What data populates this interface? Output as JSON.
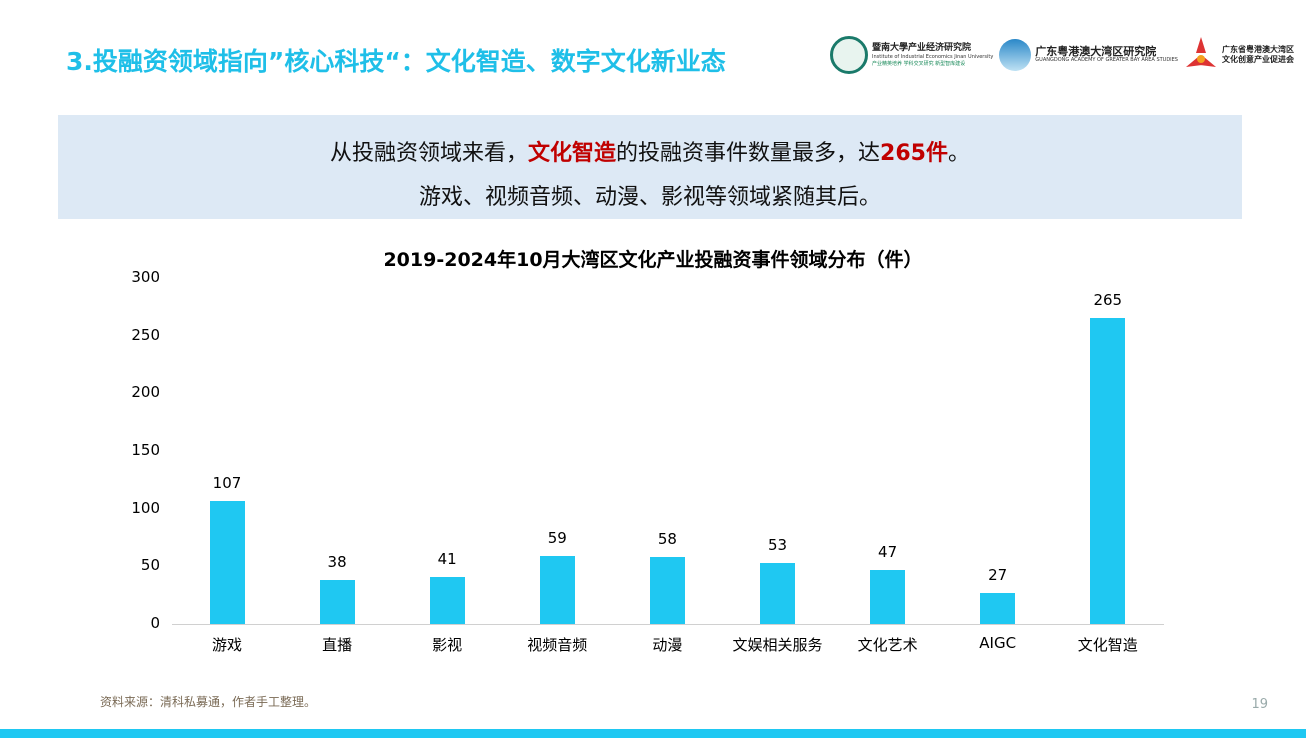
{
  "header": {
    "title": "3.投融资领域指向”核心科技“：文化智造、数字文化新业态"
  },
  "logos": {
    "jnu": {
      "name": "暨南大學产业经济研究院",
      "en": "Institute of Industrial Economics Jinan University",
      "slogan": "产业精英培养  学科交叉研究  新型智库建设"
    },
    "gba": {
      "name": "广东粤港澳大湾区研究院",
      "en": "GUANGDONG ACADEMY OF GREATER BAY AREA STUDIES"
    },
    "assoc": {
      "line1": "广东省粤港澳大湾区",
      "line2": "文化创意产业促进会"
    }
  },
  "summary": {
    "l1_a": "从投融资领域来看，",
    "l1_b": "文化智造",
    "l1_c": "的投融资事件数量最多，达",
    "l1_d": "265件",
    "l1_e": "。",
    "line2": "游戏、视频音频、动漫、影视等领域紧随其后。"
  },
  "chart_data": {
    "type": "bar",
    "title": "2019-2024年10月大湾区文化产业投融资事件领域分布（件）",
    "categories": [
      "游戏",
      "直播",
      "影视",
      "视频音频",
      "动漫",
      "文娱相关服务",
      "文化艺术",
      "AIGC",
      "文化智造"
    ],
    "values": [
      107,
      38,
      41,
      59,
      58,
      53,
      47,
      27,
      265
    ],
    "ylim": [
      0,
      300
    ],
    "yticks": [
      0,
      50,
      100,
      150,
      200,
      250,
      300
    ],
    "color": "#1fc8f2"
  },
  "footer": {
    "source": "资料来源：清科私募通，作者手工整理。",
    "page": "19"
  }
}
